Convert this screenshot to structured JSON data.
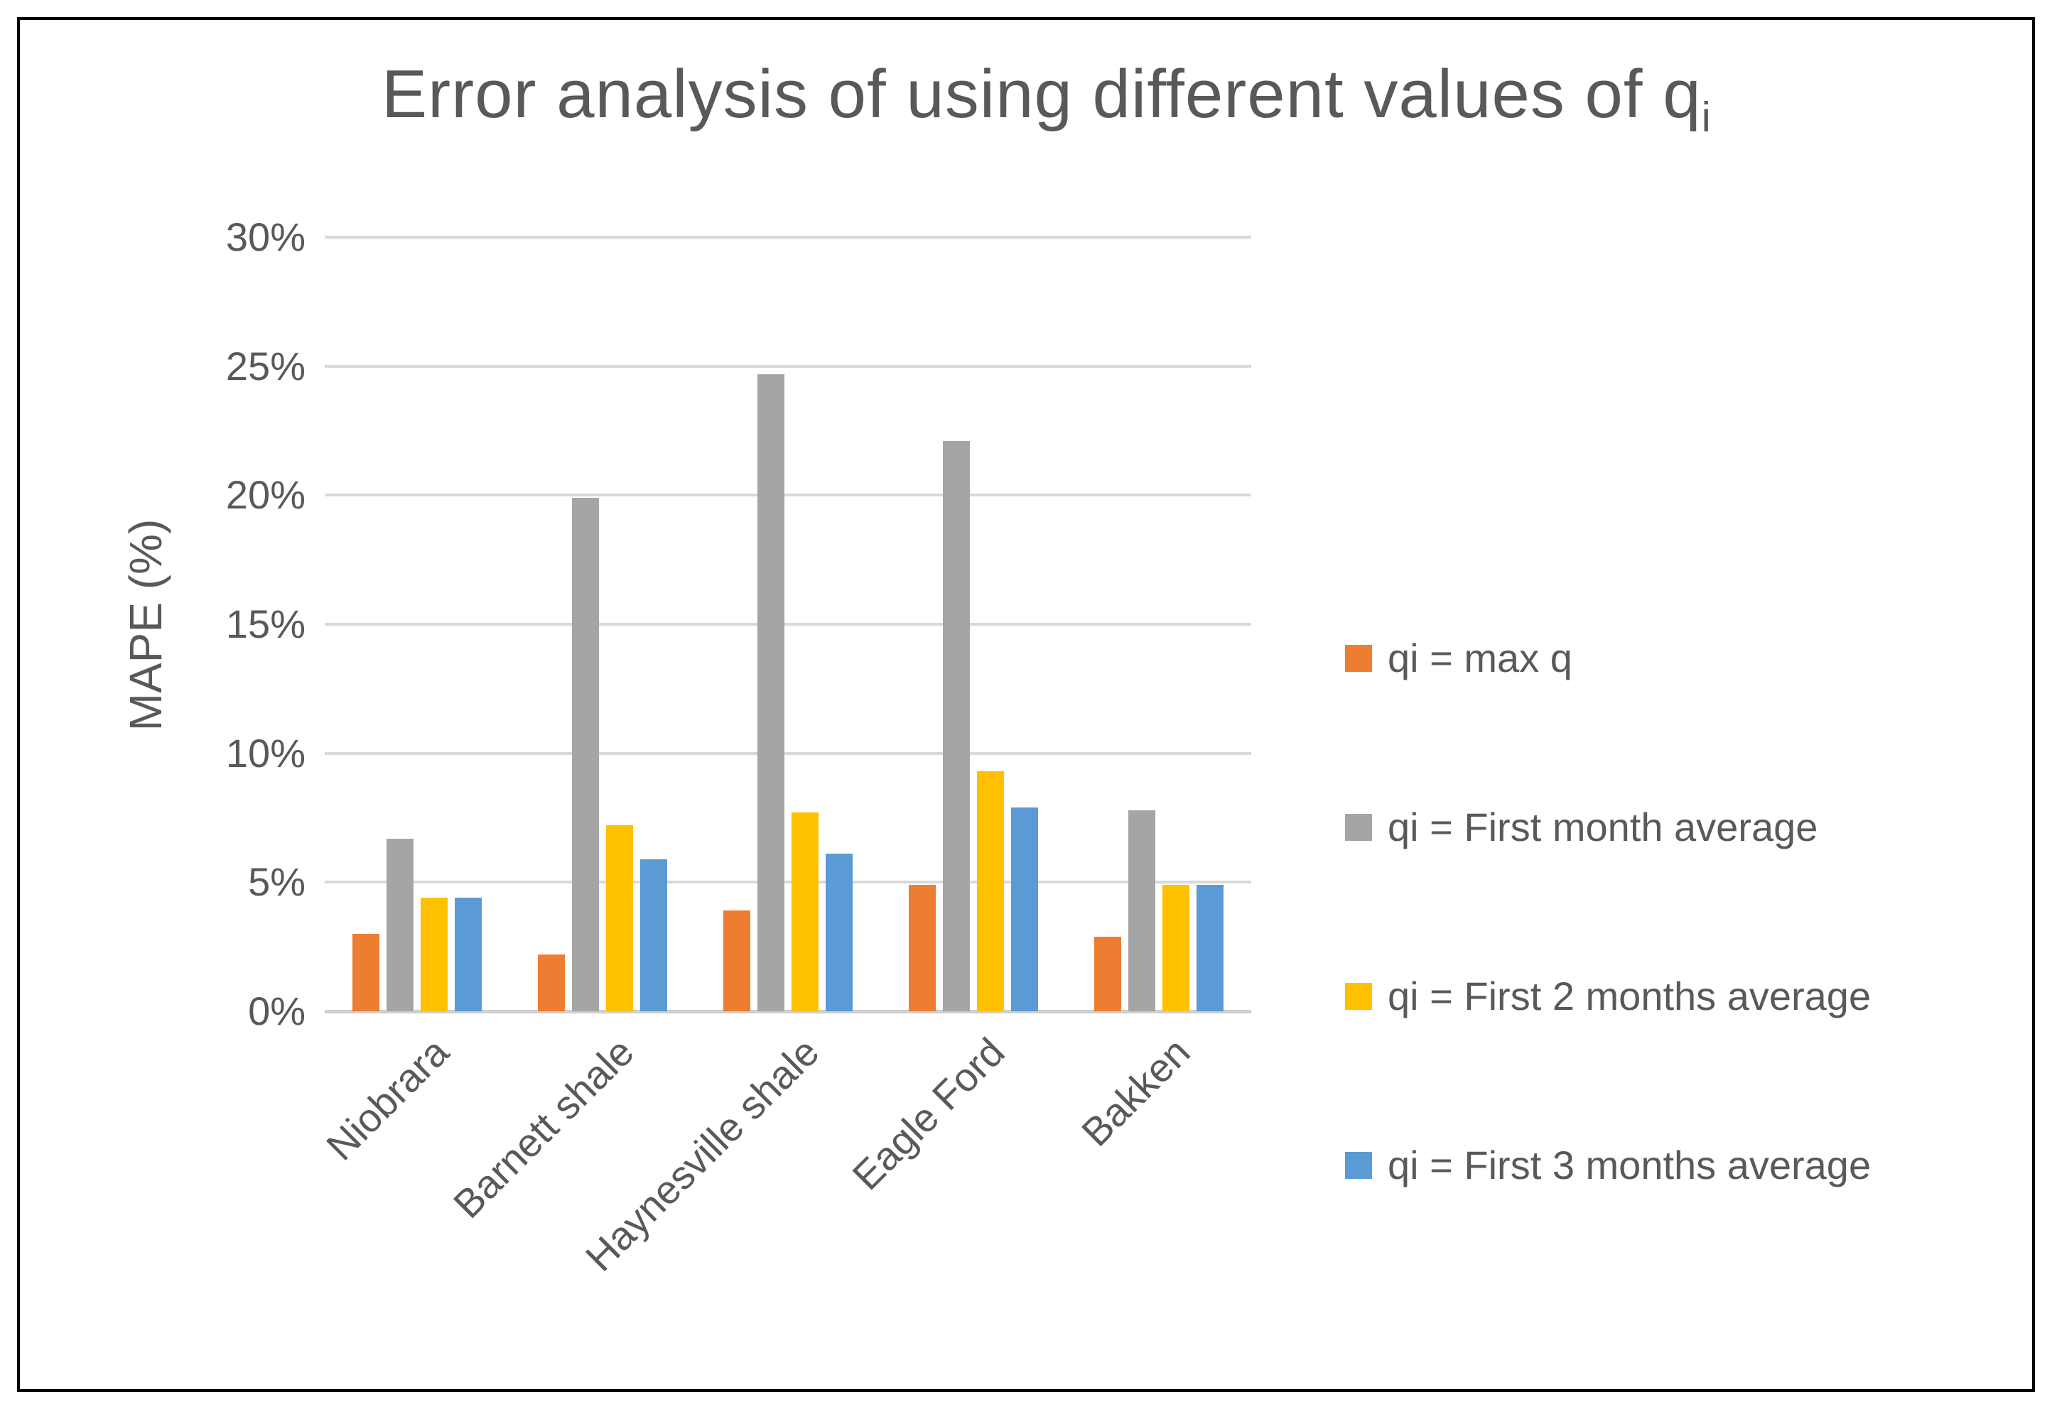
{
  "chart": {
    "title_main": "Error analysis of using different values of q",
    "title_subscript": "i",
    "y_axis_title": "MAPE (%)"
  },
  "chart_data": {
    "type": "bar",
    "title": "Error analysis of using different values of qi",
    "xlabel": "",
    "ylabel": "MAPE (%)",
    "ylim": [
      0,
      30
    ],
    "ytick_step": 5,
    "ytick_labels": [
      "0%",
      "5%",
      "10%",
      "15%",
      "20%",
      "25%",
      "30%"
    ],
    "grid": true,
    "legend_position": "right",
    "categories": [
      "Niobrara",
      "Barnett shale",
      "Haynesville shale",
      "Eagle Ford",
      "Bakken"
    ],
    "series": [
      {
        "name": "qi = max q",
        "color": "#ED7D31",
        "values": [
          3.0,
          2.2,
          3.9,
          4.9,
          2.9
        ]
      },
      {
        "name": "qi = First month average",
        "color": "#A5A5A5",
        "values": [
          6.7,
          19.9,
          24.7,
          22.1,
          7.8
        ]
      },
      {
        "name": "qi = First 2 months average",
        "color": "#FFC000",
        "values": [
          4.4,
          7.2,
          7.7,
          9.3,
          4.9
        ]
      },
      {
        "name": "qi = First 3 months average",
        "color": "#5B9BD5",
        "values": [
          4.4,
          5.9,
          6.1,
          7.9,
          4.9
        ]
      }
    ],
    "text_color": "#595959",
    "gridline_color": "#D9D9D9"
  }
}
